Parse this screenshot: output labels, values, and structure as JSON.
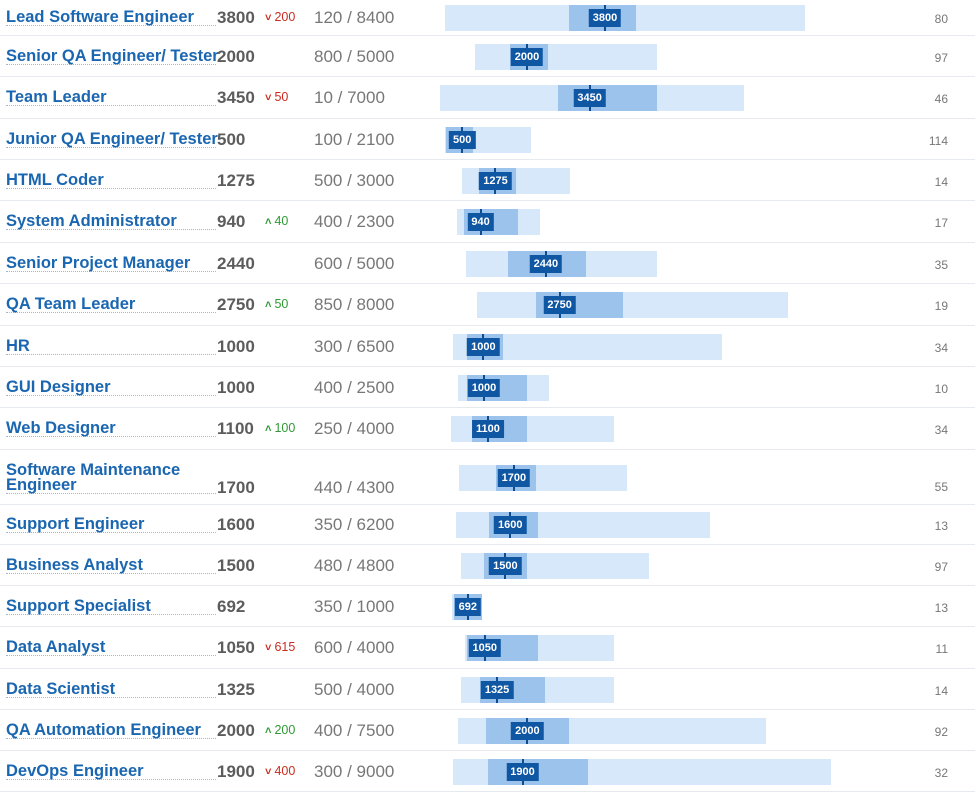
{
  "colors": {
    "title": "#1a66b0",
    "down": "#cc2b1e",
    "up": "#2f9a34",
    "bar_light": "#d7e8fa",
    "bar_mid": "#9cc3ec",
    "bar_label": "#0f56a3"
  },
  "icons": {
    "down": "chevron-down-icon",
    "up": "chevron-up-icon"
  },
  "rows": [
    {
      "title": "Lead Software Engineer",
      "median": "3800",
      "delta": "200",
      "dir": "down",
      "range": "120 / 8400",
      "count": "80"
    },
    {
      "title": "Senior QA Engineer/ Tester",
      "median": "2000",
      "delta": "",
      "dir": "",
      "range": "800 / 5000",
      "count": "97"
    },
    {
      "title": "Team Leader",
      "median": "3450",
      "delta": "50",
      "dir": "down",
      "range": "10 / 7000",
      "count": "46"
    },
    {
      "title": "Junior QA Engineer/ Tester",
      "median": "500",
      "delta": "",
      "dir": "",
      "range": "100 / 2100",
      "count": "114"
    },
    {
      "title": "HTML Coder",
      "median": "1275",
      "delta": "",
      "dir": "",
      "range": "500 / 3000",
      "count": "14"
    },
    {
      "title": "System Administrator",
      "median": "940",
      "delta": "40",
      "dir": "up",
      "range": "400 / 2300",
      "count": "17"
    },
    {
      "title": "Senior Project Manager",
      "median": "2440",
      "delta": "",
      "dir": "",
      "range": "600 / 5000",
      "count": "35"
    },
    {
      "title": "QA Team Leader",
      "median": "2750",
      "delta": "50",
      "dir": "up",
      "range": "850 / 8000",
      "count": "19"
    },
    {
      "title": "HR",
      "median": "1000",
      "delta": "",
      "dir": "",
      "range": "300 / 6500",
      "count": "34"
    },
    {
      "title": "GUI Designer",
      "median": "1000",
      "delta": "",
      "dir": "",
      "range": "400 / 2500",
      "count": "10"
    },
    {
      "title": "Web Designer",
      "median": "1100",
      "delta": "100",
      "dir": "up",
      "range": "250 / 4000",
      "count": "34"
    },
    {
      "title": "Software Maintenance Engineer",
      "median": "1700",
      "delta": "",
      "dir": "",
      "range": "440 / 4300",
      "count": "55"
    },
    {
      "title": "Support Engineer",
      "median": "1600",
      "delta": "",
      "dir": "",
      "range": "350 / 6200",
      "count": "13"
    },
    {
      "title": "Business Analyst",
      "median": "1500",
      "delta": "",
      "dir": "",
      "range": "480 / 4800",
      "count": "97"
    },
    {
      "title": "Support Specialist",
      "median": "692",
      "delta": "",
      "dir": "",
      "range": "350 / 1000",
      "count": "13"
    },
    {
      "title": "Data Analyst",
      "median": "1050",
      "delta": "615",
      "dir": "down",
      "range": "600 / 4000",
      "count": "11"
    },
    {
      "title": "Data Scientist",
      "median": "1325",
      "delta": "",
      "dir": "",
      "range": "500 / 4000",
      "count": "14"
    },
    {
      "title": "QA Automation Engineer",
      "median": "2000",
      "delta": "200",
      "dir": "up",
      "range": "400 / 7500",
      "count": "92"
    },
    {
      "title": "DevOps Engineer",
      "median": "1900",
      "delta": "400",
      "dir": "down",
      "range": "300 / 9000",
      "count": "32"
    }
  ]
}
